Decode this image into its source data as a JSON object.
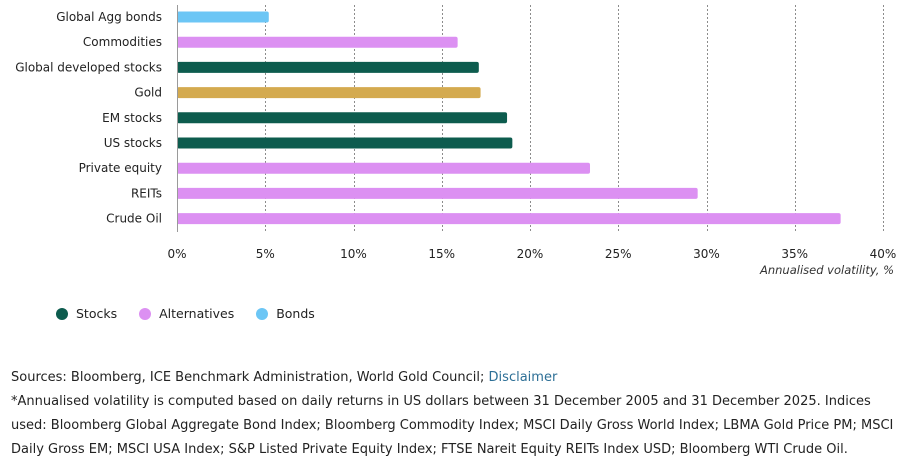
{
  "chart_data": {
    "type": "bar",
    "orientation": "horizontal",
    "categories": [
      "Global Agg bonds",
      "Commodities",
      "Global developed stocks",
      "Gold",
      "EM stocks",
      "US stocks",
      "Private equity",
      "REITs",
      "Crude Oil"
    ],
    "values": [
      5.2,
      15.9,
      17.1,
      17.2,
      18.7,
      19.0,
      23.4,
      29.5,
      37.6
    ],
    "groups": [
      "Bonds",
      "Alternatives",
      "Stocks",
      "Gold",
      "Stocks",
      "Stocks",
      "Alternatives",
      "Alternatives",
      "Alternatives"
    ],
    "colors": {
      "Stocks": "#0d5c4e",
      "Alternatives": "#dc90f2",
      "Bonds": "#6cc6f5",
      "Gold": "#d4aa4f"
    },
    "xlim": [
      0,
      40
    ],
    "xticks": [
      0,
      5,
      10,
      15,
      20,
      25,
      30,
      35,
      40
    ],
    "xtick_labels": [
      "0%",
      "5%",
      "10%",
      "15%",
      "20%",
      "25%",
      "30%",
      "35%",
      "40%"
    ],
    "xlabel": "Annualised volatility, %",
    "ylabel": "",
    "title": ""
  },
  "legend": [
    {
      "label": "Stocks",
      "color": "#0d5c4e"
    },
    {
      "label": "Alternatives",
      "color": "#dc90f2"
    },
    {
      "label": "Bonds",
      "color": "#6cc6f5"
    }
  ],
  "notes": {
    "sources_prefix": "Sources: Bloomberg, ICE Benchmark Administration, World Gold Council; ",
    "disclaimer_link": "Disclaimer",
    "footnote": "*Annualised volatility is computed based on daily returns in US dollars between 31 December 2005 and 31 December 2025. Indices used: Bloomberg Global Aggregate Bond Index; Bloomberg Commodity Index; MSCI Daily Gross World Index; LBMA Gold Price PM; MSCI Daily Gross EM; MSCI USA Index; S&P Listed Private Equity Index; FTSE Nareit Equity REITs Index USD; Bloomberg WTI Crude Oil."
  }
}
